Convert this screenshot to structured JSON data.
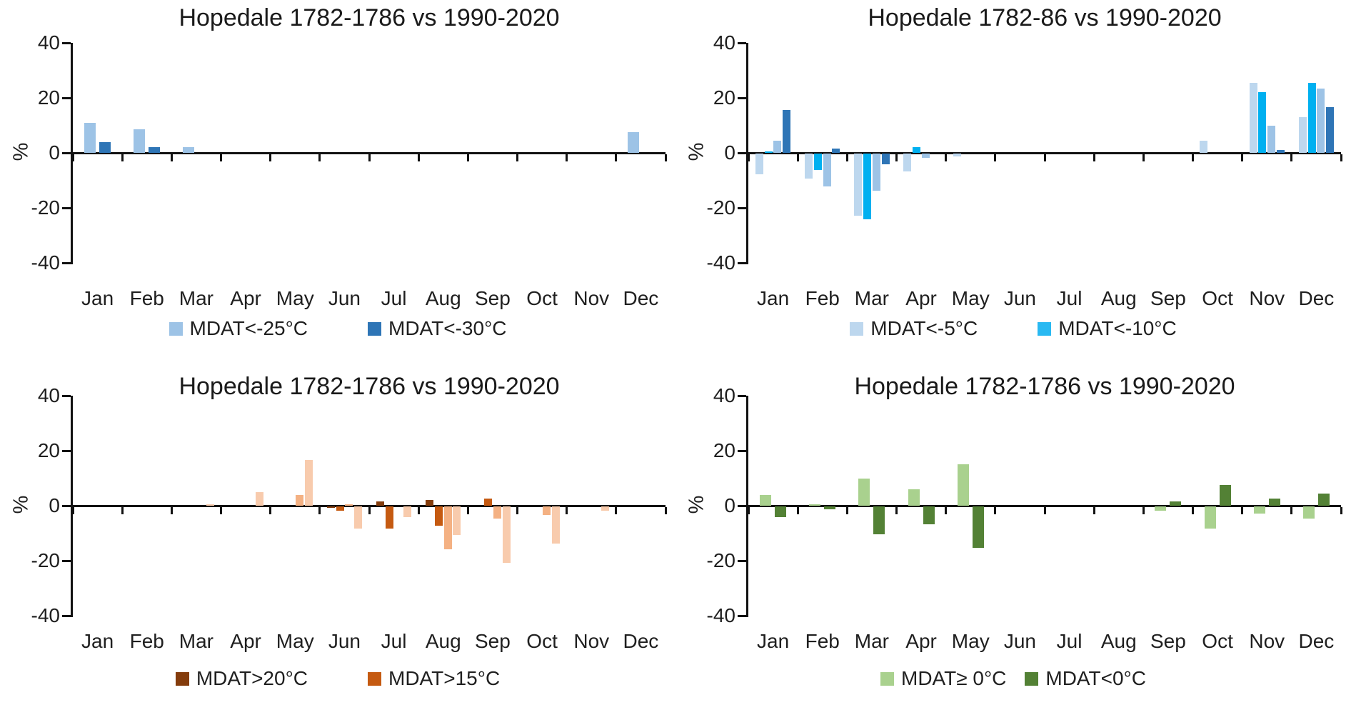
{
  "chart_data": [
    {
      "id": "top-left",
      "type": "bar",
      "title": "Hopedale 1782-1786 vs 1990-2020",
      "ylabel": "%",
      "xlabel": "",
      "ylim": [
        -40,
        40
      ],
      "yticks": [
        40,
        20,
        0,
        -20,
        -40
      ],
      "grid": false,
      "legend_position": "bottom",
      "categories": [
        "Jan",
        "Feb",
        "Mar",
        "Apr",
        "May",
        "Jun",
        "Jul",
        "Aug",
        "Sep",
        "Oct",
        "Nov",
        "Dec"
      ],
      "series": [
        {
          "name": "MDAT<-25°C",
          "color": "#9DC3E6",
          "values": [
            11,
            8.5,
            2,
            0,
            0,
            0,
            0,
            0,
            0,
            0,
            0,
            7.5
          ]
        },
        {
          "name": "MDAT<-30°C",
          "color": "#2E75B6",
          "values": [
            4,
            2,
            0,
            0,
            0,
            0,
            0,
            0,
            0,
            0,
            0,
            0
          ]
        }
      ],
      "legend": [
        {
          "label": "MDAT<-25°C",
          "color": "#9DC3E6"
        },
        {
          "label": "MDAT<-30°C",
          "color": "#2E75B6"
        }
      ]
    },
    {
      "id": "top-right",
      "type": "bar",
      "title": "Hopedale 1782-86 vs 1990-2020",
      "ylabel": "%",
      "xlabel": "",
      "ylim": [
        -40,
        40
      ],
      "yticks": [
        40,
        20,
        0,
        -20,
        -40
      ],
      "grid": false,
      "legend_position": "bottom",
      "categories": [
        "Jan",
        "Feb",
        "Mar",
        "Apr",
        "May",
        "Jun",
        "Jul",
        "Aug",
        "Sep",
        "Oct",
        "Nov",
        "Dec"
      ],
      "series": [
        {
          "name": "MDAT<-5°C",
          "color": "#BDD7EE",
          "values": [
            -7.5,
            -9,
            -22.5,
            -6.5,
            -1,
            0,
            0,
            0,
            0,
            4.5,
            25.5,
            13
          ]
        },
        {
          "name": "MDAT<-10°C",
          "color": "#00B0F0",
          "values": [
            0.5,
            -6,
            -24,
            2,
            0,
            0,
            0,
            0,
            0,
            0,
            22,
            25.5
          ]
        },
        {
          "name": "",
          "color": "#9DC3E6",
          "values": [
            4.5,
            -12,
            -13.5,
            -1.5,
            0,
            0,
            0,
            0,
            0,
            0,
            10,
            23.5
          ]
        },
        {
          "name": "",
          "color": "#2E75B6",
          "values": [
            15.5,
            1.5,
            -4,
            0,
            0,
            0,
            0,
            0,
            0,
            0,
            1,
            16.5
          ]
        }
      ],
      "legend": [
        {
          "label": "MDAT<-5°C",
          "color": "#BDD7EE"
        },
        {
          "label": "MDAT<-10°C",
          "color": "#29B9F2"
        }
      ]
    },
    {
      "id": "bottom-left",
      "type": "bar",
      "title": "Hopedale 1782-1786 vs 1990-2020",
      "ylabel": "%",
      "xlabel": "",
      "ylim": [
        -40,
        40
      ],
      "yticks": [
        40,
        20,
        0,
        -20,
        -40
      ],
      "grid": false,
      "legend_position": "bottom",
      "categories": [
        "Jan",
        "Feb",
        "Mar",
        "Apr",
        "May",
        "Jun",
        "Jul",
        "Aug",
        "Sep",
        "Oct",
        "Nov",
        "Dec"
      ],
      "series": [
        {
          "name": "MDAT>20°C",
          "color": "#843C0C",
          "values": [
            0,
            0,
            0,
            0,
            0,
            -0.5,
            1.5,
            2,
            0,
            0,
            0,
            0
          ]
        },
        {
          "name": "MDAT>15°C",
          "color": "#C55A11",
          "values": [
            0,
            0,
            0,
            0,
            0,
            -1.5,
            -8,
            -7,
            2.5,
            0,
            0,
            0
          ]
        },
        {
          "name": "",
          "color": "#F4B183",
          "values": [
            0,
            0,
            0,
            0,
            4,
            0.5,
            0,
            -15.5,
            -4.5,
            -3,
            0,
            0
          ]
        },
        {
          "name": "",
          "color": "#F8CBAD",
          "values": [
            0,
            0,
            0.5,
            5,
            16.5,
            -8,
            -4,
            -10.5,
            -20.5,
            -13.5,
            -1.5,
            0
          ]
        }
      ],
      "legend": [
        {
          "label": "MDAT>20°C",
          "color": "#843C0C"
        },
        {
          "label": "MDAT>15°C",
          "color": "#C55A11"
        }
      ]
    },
    {
      "id": "bottom-right",
      "type": "bar",
      "title": "Hopedale 1782-1786 vs 1990-2020",
      "ylabel": "%",
      "xlabel": "",
      "ylim": [
        -40,
        40
      ],
      "yticks": [
        40,
        20,
        0,
        -20,
        -40
      ],
      "grid": false,
      "legend_position": "bottom",
      "categories": [
        "Jan",
        "Feb",
        "Mar",
        "Apr",
        "May",
        "Jun",
        "Jul",
        "Aug",
        "Sep",
        "Oct",
        "Nov",
        "Dec"
      ],
      "series": [
        {
          "name": "MDAT≥ 0°C",
          "color": "#A9D18E",
          "values": [
            4,
            0.5,
            10,
            6,
            15,
            0,
            0,
            0,
            -1.5,
            -8,
            -2.5,
            -4.5
          ]
        },
        {
          "name": "MDAT<0°C",
          "color": "#538135",
          "values": [
            -4,
            -1,
            -10,
            -6.5,
            -15,
            0,
            0,
            0,
            1.5,
            7.5,
            2.5,
            4.5
          ]
        }
      ],
      "legend": [
        {
          "label": "MDAT≥ 0°C",
          "color": "#A9D18E"
        },
        {
          "label": "MDAT<0°C",
          "color": "#538135"
        }
      ]
    }
  ]
}
